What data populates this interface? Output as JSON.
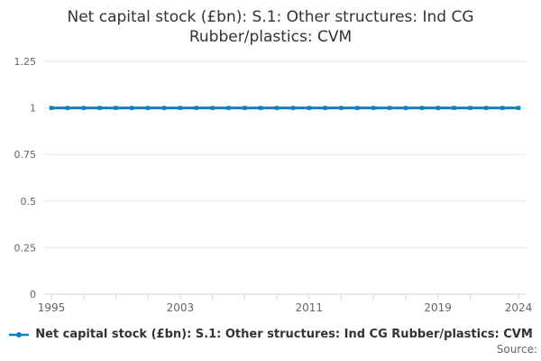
{
  "header": {
    "title_line1": "Net capital stock (£bn): S.1: Other structures: Ind CG",
    "title_line2": "Rubber/plastics: CVM"
  },
  "legend": {
    "label": "Net capital stock (£bn): S.1: Other structures: Ind CG Rubber/plastics: CVM"
  },
  "source_label": "Source:",
  "colors": {
    "line": "#1380be",
    "grid": "#e6e6e6",
    "axis": "#ccd6eb",
    "axis_label": "#666666",
    "title": "#333333",
    "legend_text": "#333333",
    "source_text": "#666666"
  },
  "chart_data": {
    "type": "line",
    "title": "Net capital stock (£bn): S.1: Other structures: Ind CG Rubber/plastics: CVM",
    "xlabel": "",
    "ylabel": "",
    "x": [
      1995,
      1996,
      1997,
      1998,
      1999,
      2000,
      2001,
      2002,
      2003,
      2004,
      2005,
      2006,
      2007,
      2008,
      2009,
      2010,
      2011,
      2012,
      2013,
      2014,
      2015,
      2016,
      2017,
      2018,
      2019,
      2020,
      2021,
      2022,
      2023,
      2024
    ],
    "series": [
      {
        "name": "Net capital stock (£bn): S.1: Other structures: Ind CG Rubber/plastics: CVM",
        "values": [
          1,
          1,
          1,
          1,
          1,
          1,
          1,
          1,
          1,
          1,
          1,
          1,
          1,
          1,
          1,
          1,
          1,
          1,
          1,
          1,
          1,
          1,
          1,
          1,
          1,
          1,
          1,
          1,
          1,
          1
        ]
      }
    ],
    "ylim": [
      0,
      1.25
    ],
    "yticks": [
      0,
      0.25,
      0.5,
      0.75,
      1,
      1.25
    ],
    "xtick_marks": [
      1995,
      1997,
      1999,
      2001,
      2003,
      2005,
      2007,
      2009,
      2011,
      2013,
      2015,
      2017,
      2019,
      2021,
      2024
    ],
    "xtick_labels": [
      1995,
      2003,
      2011,
      2019,
      2024
    ],
    "grid": true,
    "legend_position": "bottom"
  }
}
